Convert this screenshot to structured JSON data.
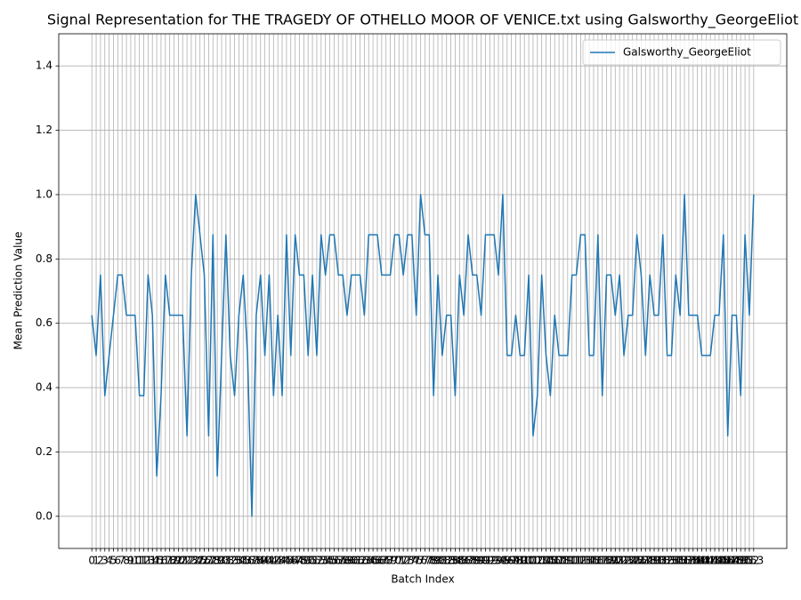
{
  "chart_data": {
    "type": "line",
    "title": "Signal Representation for THE TRAGEDY OF OTHELLO MOOR OF VENICE.txt using Galsworthy_GeorgeEliot",
    "x_label": "Batch Index",
    "y_label": "Mean Prediction Value",
    "x": [
      0,
      1,
      2,
      3,
      4,
      5,
      6,
      7,
      8,
      9,
      10,
      11,
      12,
      13,
      14,
      15,
      16,
      17,
      18,
      19,
      20,
      21,
      22,
      23,
      24,
      25,
      26,
      27,
      28,
      29,
      30,
      31,
      32,
      33,
      34,
      35,
      36,
      37,
      38,
      39,
      40,
      41,
      42,
      43,
      44,
      45,
      46,
      47,
      48,
      49,
      50,
      51,
      52,
      53,
      54,
      55,
      56,
      57,
      58,
      59,
      60,
      61,
      62,
      63,
      64,
      65,
      66,
      67,
      68,
      69,
      70,
      71,
      72,
      73,
      74,
      75,
      76,
      77,
      78,
      79,
      80,
      81,
      82,
      83,
      84,
      85,
      86,
      87,
      88,
      89,
      90,
      91,
      92,
      93,
      94,
      95,
      96,
      97,
      98,
      99,
      100,
      101,
      102,
      103,
      104,
      105,
      106,
      107,
      108,
      109,
      110,
      111,
      112,
      113,
      114,
      115,
      116,
      117,
      118,
      119,
      120,
      121,
      122,
      123,
      124,
      125,
      126,
      127,
      128,
      129,
      130,
      131,
      132,
      133,
      134,
      135,
      136,
      137,
      138,
      139,
      140,
      141,
      142,
      143,
      144,
      145,
      146,
      147,
      148,
      149,
      150,
      151,
      152,
      153
    ],
    "series": [
      {
        "name": "Galsworthy_GeorgeEliot",
        "color": "#1f77b4",
        "values": [
          0.625,
          0.5,
          0.75,
          0.375,
          0.5,
          0.625,
          0.75,
          0.75,
          0.625,
          0.625,
          0.625,
          0.375,
          0.375,
          0.75,
          0.625,
          0.125,
          0.375,
          0.75,
          0.625,
          0.625,
          0.625,
          0.625,
          0.25,
          0.75,
          1,
          0.875,
          0.75,
          0.25,
          0.875,
          0.125,
          0.5,
          0.875,
          0.5,
          0.375,
          0.625,
          0.75,
          0.5,
          0,
          0.625,
          0.75,
          0.5,
          0.75,
          0.375,
          0.625,
          0.375,
          0.875,
          0.5,
          0.875,
          0.75,
          0.75,
          0.5,
          0.75,
          0.5,
          0.875,
          0.75,
          0.875,
          0.875,
          0.75,
          0.75,
          0.625,
          0.75,
          0.75,
          0.75,
          0.625,
          0.875,
          0.875,
          0.875,
          0.75,
          0.75,
          0.75,
          0.875,
          0.875,
          0.75,
          0.875,
          0.875,
          0.625,
          1,
          0.875,
          0.875,
          0.375,
          0.75,
          0.5,
          0.625,
          0.625,
          0.375,
          0.75,
          0.625,
          0.875,
          0.75,
          0.75,
          0.625,
          0.875,
          0.875,
          0.875,
          0.75,
          1,
          0.5,
          0.5,
          0.625,
          0.5,
          0.5,
          0.75,
          0.25,
          0.375,
          0.75,
          0.5,
          0.375,
          0.625,
          0.5,
          0.5,
          0.5,
          0.75,
          0.75,
          0.875,
          0.875,
          0.5,
          0.5,
          0.875,
          0.375,
          0.75,
          0.75,
          0.625,
          0.75,
          0.5,
          0.625,
          0.625,
          0.875,
          0.75,
          0.5,
          0.75,
          0.625,
          0.625,
          0.875,
          0.5,
          0.5,
          0.75,
          0.625,
          1,
          0.625,
          0.625,
          0.625,
          0.5,
          0.5,
          0.5,
          0.625,
          0.625,
          0.875,
          0.25,
          0.625,
          0.625,
          0.375,
          0.875,
          0.625,
          1
        ]
      }
    ],
    "xlim": [
      -7.65,
      160.65
    ],
    "ylim": [
      -0.1,
      1.5
    ],
    "xticks": [
      0,
      1,
      2,
      3,
      4,
      5,
      6,
      7,
      8,
      9,
      10,
      11,
      12,
      13,
      14,
      15,
      16,
      17,
      18,
      19,
      20,
      21,
      22,
      23,
      24,
      25,
      26,
      27,
      28,
      29,
      30,
      31,
      32,
      33,
      34,
      35,
      36,
      37,
      38,
      39,
      40,
      41,
      42,
      43,
      44,
      45,
      46,
      47,
      48,
      49,
      50,
      51,
      52,
      53,
      54,
      55,
      56,
      57,
      58,
      59,
      60,
      61,
      62,
      63,
      64,
      65,
      66,
      67,
      68,
      69,
      70,
      71,
      72,
      73,
      74,
      75,
      76,
      77,
      78,
      79,
      80,
      81,
      82,
      83,
      84,
      85,
      86,
      87,
      88,
      89,
      90,
      91,
      92,
      93,
      94,
      95,
      96,
      97,
      98,
      99,
      100,
      101,
      102,
      103,
      104,
      105,
      106,
      107,
      108,
      109,
      110,
      111,
      112,
      113,
      114,
      115,
      116,
      117,
      118,
      119,
      120,
      121,
      122,
      123,
      124,
      125,
      126,
      127,
      128,
      129,
      130,
      131,
      132,
      133,
      134,
      135,
      136,
      137,
      138,
      139,
      140,
      141,
      142,
      143,
      144,
      145,
      146,
      147,
      148,
      149,
      150,
      151,
      152,
      153
    ],
    "yticks": [
      {
        "value": 0,
        "label": "0.0"
      },
      0.2,
      0.4,
      0.6,
      0.8,
      {
        "value": 1,
        "label": "1.0"
      },
      1.2,
      1.4
    ],
    "grid": true,
    "legend": "upper right"
  }
}
